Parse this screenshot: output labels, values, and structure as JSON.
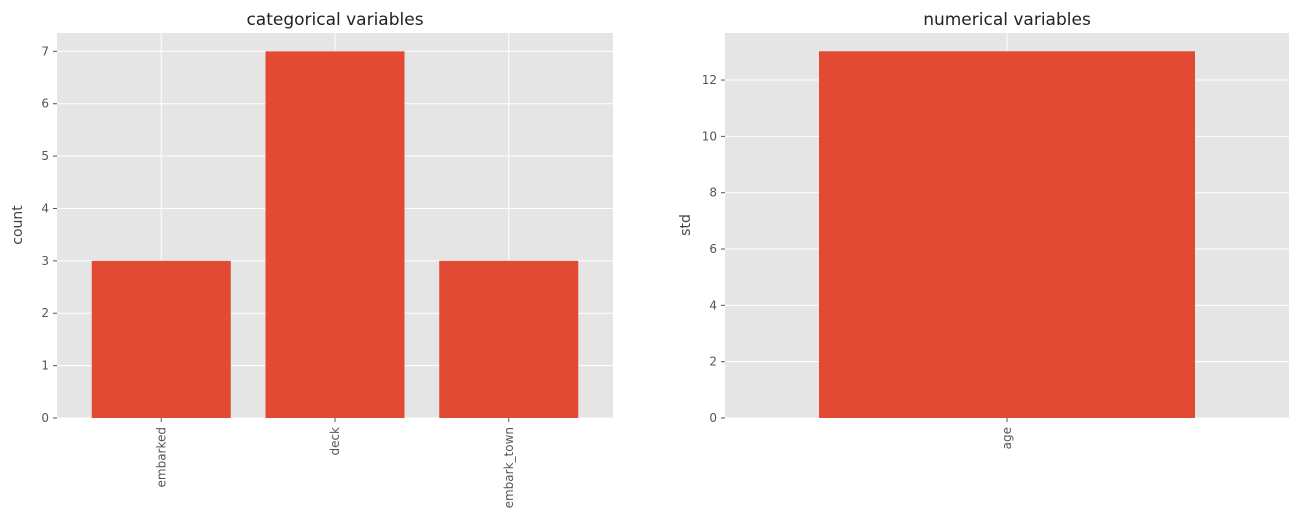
{
  "chart_data": [
    {
      "type": "bar",
      "title": "categorical variables",
      "xlabel": "",
      "ylabel": "count",
      "categories": [
        "embarked",
        "deck",
        "embark_town"
      ],
      "values": [
        3,
        7,
        3
      ],
      "ylim": [
        0,
        7.35
      ],
      "yticks": [
        0,
        1,
        2,
        3,
        4,
        5,
        6,
        7
      ],
      "grid": true,
      "bar_color": "#e24a33",
      "background": "#e5e5e5"
    },
    {
      "type": "bar",
      "title": "numerical variables",
      "xlabel": "",
      "ylabel": "std",
      "categories": [
        "age"
      ],
      "values": [
        13.02
      ],
      "ylim": [
        0,
        13.67
      ],
      "yticks": [
        0,
        2,
        4,
        6,
        8,
        10,
        12
      ],
      "grid": true,
      "bar_color": "#e24a33",
      "background": "#e5e5e5"
    }
  ]
}
